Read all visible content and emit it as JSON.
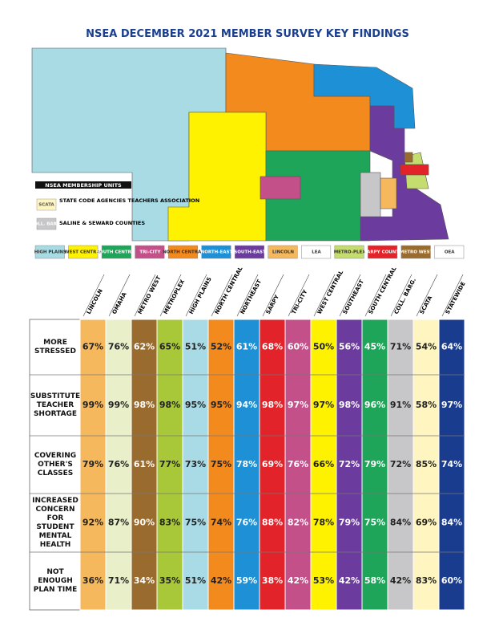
{
  "title": "NSEA DECEMBER 2021 MEMBER SURVEY KEY FINDINGS",
  "map": {
    "legend_title": "NSEA MEMBERSHIP UNITS",
    "notes": [
      {
        "swatch": "SCATA",
        "text": "STATE CODE AGENCIES TEACHERS ASSOCIATION"
      },
      {
        "swatch": "COLL. BARG.",
        "text": "SALINE & SEWARD COUNTIES"
      }
    ],
    "units": [
      {
        "label": "HIGH PLAINS",
        "color": "#a9dbe4"
      },
      {
        "label": "WEST CENTRAL",
        "color": "#fff200"
      },
      {
        "label": "SOUTH CENTRAL",
        "color": "#1fa55a"
      },
      {
        "label": "TRI-CITY",
        "color": "#c4508a"
      },
      {
        "label": "NORTH CENTRAL",
        "color": "#f28a1e"
      },
      {
        "label": "NORTH-EAST",
        "color": "#1e90d6"
      },
      {
        "label": "SOUTH-EAST",
        "color": "#6b3b9e"
      },
      {
        "label": "LINCOLN",
        "color": "#f6b85c"
      },
      {
        "label": "LEA",
        "color": "#ffffff"
      },
      {
        "label": "METRO-PLEX",
        "color": "#c5dc6e"
      },
      {
        "label": "SARPY COUNTY",
        "color": "#e3232a"
      },
      {
        "label": "METRO WEST",
        "color": "#9a6b2e"
      },
      {
        "label": "OEA",
        "color": "#ffffff"
      }
    ]
  },
  "table": {
    "columns": [
      {
        "name": "LINCOLN",
        "color": "#f6b85c"
      },
      {
        "name": "OMAHA",
        "color": "#e8efc9"
      },
      {
        "name": "METRO WEST",
        "color": "#9a6b2e"
      },
      {
        "name": "METROPLEX",
        "color": "#a8c83a"
      },
      {
        "name": "HIGH PLAINS",
        "color": "#a9dbe6"
      },
      {
        "name": "NORTH CENTRAL",
        "color": "#f28a1e"
      },
      {
        "name": "NORTHEAST",
        "color": "#1e90d6"
      },
      {
        "name": "SARPY",
        "color": "#e3232a"
      },
      {
        "name": "TRI-CITY",
        "color": "#c4508a"
      },
      {
        "name": "WEST CENTRAL",
        "color": "#fff200"
      },
      {
        "name": "SOUTHEAST",
        "color": "#6b3b9e"
      },
      {
        "name": "SOUTH CENTRAL",
        "color": "#1fa55a"
      },
      {
        "name": "COLL. BARG.",
        "color": "#c7c7c9"
      },
      {
        "name": "SCATA",
        "color": "#fff5c0"
      },
      {
        "name": "STATEWIDE",
        "color": "#1a3c8f"
      }
    ],
    "rows": [
      {
        "label": "MORE STRESSED",
        "cells": [
          "67%",
          "76%",
          "62%",
          "65%",
          "51%",
          "52%",
          "61%",
          "68%",
          "60%",
          "50%",
          "56%",
          "45%",
          "71%",
          "54%",
          "64%"
        ]
      },
      {
        "label": "SUBSTITUTE TEACHER SHORTAGE",
        "cells": [
          "99%",
          "99%",
          "98%",
          "98%",
          "95%",
          "95%",
          "94%",
          "98%",
          "97%",
          "97%",
          "98%",
          "96%",
          "91%",
          "58%",
          "97%"
        ]
      },
      {
        "label": "COVERING OTHER'S CLASSES",
        "cells": [
          "79%",
          "76%",
          "61%",
          "77%",
          "73%",
          "75%",
          "78%",
          "69%",
          "76%",
          "66%",
          "72%",
          "79%",
          "72%",
          "85%",
          "74%"
        ]
      },
      {
        "label": "INCREASED CONCERN FOR STUDENT MENTAL HEALTH",
        "cells": [
          "92%",
          "87%",
          "90%",
          "83%",
          "75%",
          "74%",
          "76%",
          "88%",
          "82%",
          "78%",
          "79%",
          "75%",
          "84%",
          "69%",
          "84%"
        ]
      },
      {
        "label": "NOT ENOUGH PLAN TIME",
        "cells": [
          "36%",
          "71%",
          "34%",
          "35%",
          "51%",
          "42%",
          "59%",
          "38%",
          "42%",
          "53%",
          "42%",
          "58%",
          "42%",
          "83%",
          "60%"
        ]
      }
    ]
  }
}
